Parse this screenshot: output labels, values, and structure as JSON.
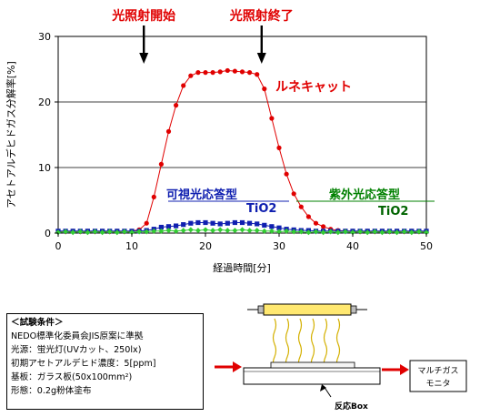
{
  "chart_data": {
    "type": "scatter",
    "title": "",
    "xlabel": "経過時間[分]",
    "ylabel": "アセトアルデヒドガス分解率[%]",
    "xlim": [
      0,
      50
    ],
    "ylim": [
      0,
      30
    ],
    "x_ticks": [
      "0",
      "10",
      "20",
      "30",
      "40",
      "50"
    ],
    "y_ticks": [
      "0",
      "10",
      "20",
      "30"
    ],
    "grid": "horizontal",
    "annotations": {
      "light_on": "光照射開始",
      "light_off": "光照射終了",
      "light_on_x": 12,
      "light_off_x": 28
    },
    "series": [
      {
        "name": "ルネキャット",
        "color": "#e00000",
        "x": [
          0,
          1,
          2,
          3,
          4,
          5,
          6,
          7,
          8,
          9,
          10,
          11,
          12,
          13,
          14,
          15,
          16,
          17,
          18,
          19,
          20,
          21,
          22,
          23,
          24,
          25,
          26,
          27,
          28,
          29,
          30,
          31,
          32,
          33,
          34,
          35,
          36,
          37,
          38,
          39,
          40,
          41,
          42,
          43,
          44,
          45,
          46,
          47,
          48,
          49,
          50
        ],
        "y": [
          0.3,
          0.2,
          0.3,
          0.2,
          0.3,
          0.2,
          0.3,
          0.2,
          0.3,
          0.2,
          0.3,
          0.5,
          1.5,
          5.5,
          10.5,
          15.5,
          19.5,
          22.5,
          24.0,
          24.5,
          24.5,
          24.5,
          24.6,
          24.8,
          24.7,
          24.6,
          24.5,
          24.2,
          22.0,
          17.5,
          13.0,
          9.0,
          6.0,
          4.0,
          2.5,
          1.5,
          1.0,
          0.6,
          0.4,
          0.3,
          0.3,
          0.2,
          0.3,
          0.2,
          0.3,
          0.2,
          0.3,
          0.2,
          0.3,
          0.2,
          0.3
        ]
      },
      {
        "name": "可視光応答型 TiO2",
        "color": "#1020b0",
        "x": [
          0,
          1,
          2,
          3,
          4,
          5,
          6,
          7,
          8,
          9,
          10,
          11,
          12,
          13,
          14,
          15,
          16,
          17,
          18,
          19,
          20,
          21,
          22,
          23,
          24,
          25,
          26,
          27,
          28,
          29,
          30,
          31,
          32,
          33,
          34,
          35,
          36,
          37,
          38,
          39,
          40,
          41,
          42,
          43,
          44,
          45,
          46,
          47,
          48,
          49,
          50
        ],
        "y": [
          0.3,
          0.3,
          0.3,
          0.3,
          0.3,
          0.3,
          0.3,
          0.3,
          0.3,
          0.3,
          0.3,
          0.3,
          0.4,
          0.6,
          0.9,
          1.0,
          1.1,
          1.3,
          1.5,
          1.6,
          1.6,
          1.5,
          1.4,
          1.5,
          1.6,
          1.6,
          1.5,
          1.4,
          1.2,
          1.0,
          0.8,
          0.6,
          0.5,
          0.4,
          0.4,
          0.3,
          0.3,
          0.3,
          0.3,
          0.3,
          0.3,
          0.3,
          0.3,
          0.3,
          0.3,
          0.3,
          0.3,
          0.3,
          0.3,
          0.3,
          0.3
        ]
      },
      {
        "name": "紫外光応答型 TiO2",
        "color": "#33cc33",
        "x": [
          0,
          1,
          2,
          3,
          4,
          5,
          6,
          7,
          8,
          9,
          10,
          11,
          12,
          13,
          14,
          15,
          16,
          17,
          18,
          19,
          20,
          21,
          22,
          23,
          24,
          25,
          26,
          27,
          28,
          29,
          30,
          31,
          32,
          33,
          34,
          35,
          36,
          37,
          38,
          39,
          40,
          41,
          42,
          43,
          44,
          45,
          46,
          47,
          48,
          49,
          50
        ],
        "y": [
          0.1,
          0.2,
          0.1,
          0.2,
          0.1,
          0.2,
          0.1,
          0.2,
          0.1,
          0.2,
          0.1,
          0.2,
          0.2,
          0.3,
          0.3,
          0.4,
          0.3,
          0.4,
          0.5,
          0.4,
          0.5,
          0.4,
          0.5,
          0.4,
          0.4,
          0.5,
          0.4,
          0.4,
          0.3,
          0.3,
          0.2,
          0.3,
          0.2,
          0.2,
          0.1,
          0.2,
          0.1,
          0.2,
          0.1,
          0.2,
          0.1,
          0.2,
          0.1,
          0.2,
          0.1,
          0.2,
          0.1,
          0.2,
          0.1,
          0.2,
          0.1
        ]
      }
    ],
    "series_labels": {
      "renecat": "ルネキャット",
      "visible_line1": "可視光応答型",
      "visible_line2": "TiO2",
      "uv_line1": "紫外光応答型",
      "uv_line2": "TiO2"
    }
  },
  "test_conditions": {
    "title": "＜試験条件＞",
    "lines": [
      "NEDO標準化委員会JIS原案に準拠",
      "光源：蛍光灯(UVカット、250lx)",
      "初期アセトアルデヒド濃度：5[ppm]",
      "基板：ガラス板(50x100mm²)",
      "形態：0.2g粉体塗布"
    ]
  },
  "device": {
    "reaction_box_label": "反応Box",
    "monitor_line1": "マルチガス",
    "monitor_line2": "モニタ"
  }
}
